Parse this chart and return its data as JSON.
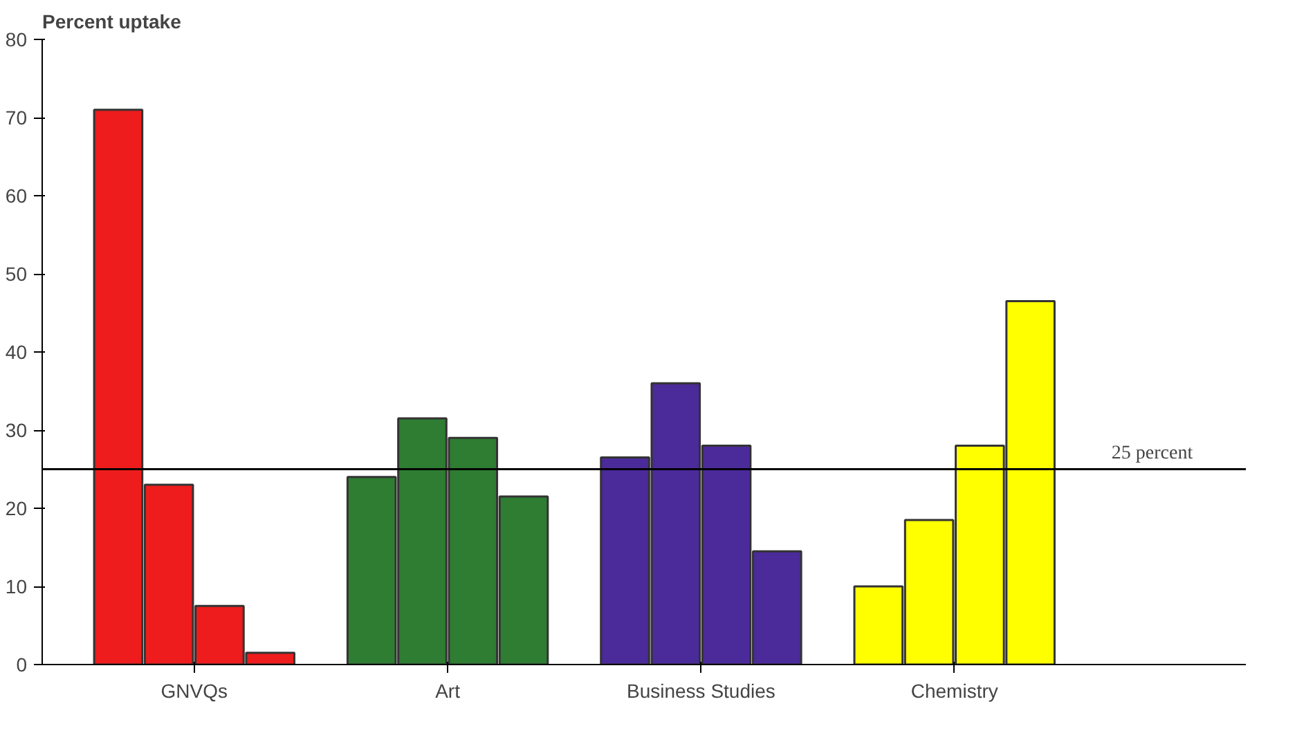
{
  "chart_data": {
    "type": "bar",
    "ylabel": "Percent uptake",
    "categories": [
      "GNVQs",
      "Art",
      "Business Studies",
      "Chemistry"
    ],
    "series": [
      {
        "colors": [
          "#ee1c1c",
          "#2e7d32",
          "#4b2a9a",
          "#ffff00"
        ],
        "values": [
          71,
          24,
          26.5,
          10
        ]
      },
      {
        "colors": [
          "#ee1c1c",
          "#2e7d32",
          "#4b2a9a",
          "#ffff00"
        ],
        "values": [
          23,
          31.5,
          36,
          18.5
        ]
      },
      {
        "colors": [
          "#ee1c1c",
          "#2e7d32",
          "#4b2a9a",
          "#ffff00"
        ],
        "values": [
          7.5,
          29,
          28,
          28
        ]
      },
      {
        "colors": [
          "#ee1c1c",
          "#2e7d32",
          "#4b2a9a",
          "#ffff00"
        ],
        "values": [
          1.5,
          21.5,
          14.5,
          46.5
        ]
      }
    ],
    "ylim": [
      0,
      80
    ],
    "yticks": [
      0,
      10,
      20,
      30,
      40,
      50,
      60,
      70,
      80
    ],
    "ref_lines": [
      {
        "axis": "y",
        "value": 25,
        "label": "25 percent",
        "color": "#000000"
      }
    ],
    "grid": false
  }
}
